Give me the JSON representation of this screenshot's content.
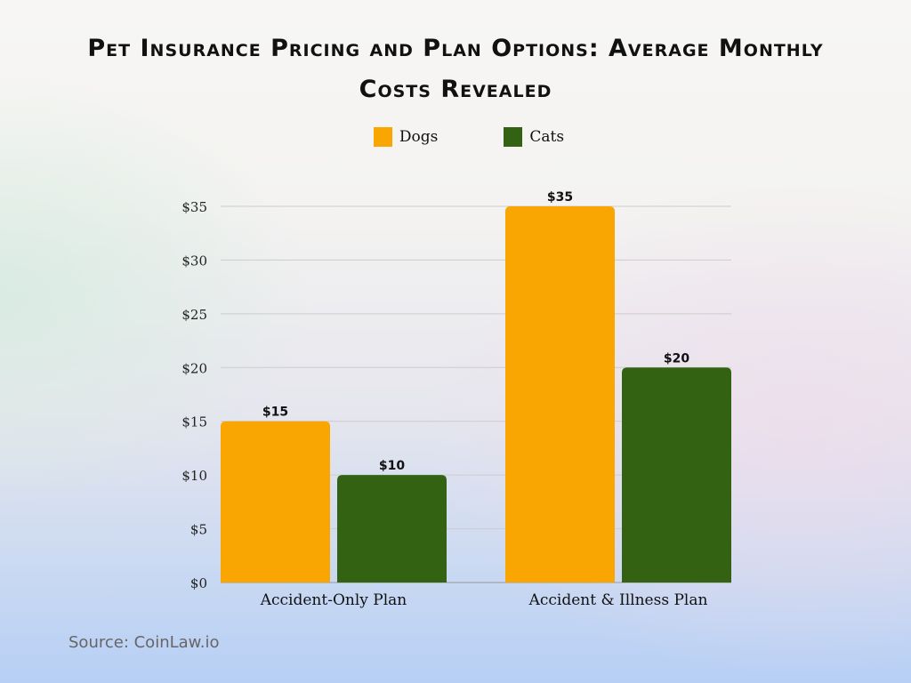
{
  "chart_data": {
    "type": "bar",
    "title": "Pet Insurance Pricing and Plan Options: Average Monthly Costs Revealed",
    "categories": [
      "Accident-Only Plan",
      "Accident & Illness Plan"
    ],
    "series": [
      {
        "name": "Dogs",
        "values": [
          15,
          35
        ],
        "color": "#f9a602",
        "labels": [
          "$15",
          "$35"
        ]
      },
      {
        "name": "Cats",
        "values": [
          10,
          20
        ],
        "color": "#336212",
        "labels": [
          "$10",
          "$20"
        ]
      }
    ],
    "yticks": [
      0,
      5,
      10,
      15,
      20,
      25,
      30,
      35
    ],
    "ytick_labels": [
      "$0",
      "$5",
      "$10",
      "$15",
      "$20",
      "$25",
      "$30",
      "$35"
    ],
    "ylim": [
      0,
      35
    ],
    "grid": true,
    "legend": "top-center",
    "xlabel": "",
    "ylabel": ""
  },
  "source": "Source: CoinLaw.io"
}
